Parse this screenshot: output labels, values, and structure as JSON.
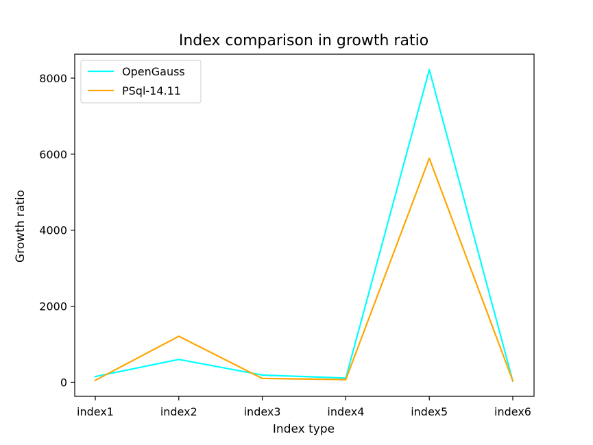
{
  "chart_data": {
    "type": "line",
    "title": "Index comparison in growth ratio",
    "xlabel": "Index type",
    "ylabel": "Growth ratio",
    "categories": [
      "index1",
      "index2",
      "index3",
      "index4",
      "index5",
      "index6"
    ],
    "series": [
      {
        "name": "OpenGauss",
        "color": "#00FFFF",
        "values": [
          150,
          600,
          190,
          110,
          8220,
          30
        ]
      },
      {
        "name": "PSql-14.11",
        "color": "#FFA500",
        "values": [
          50,
          1210,
          100,
          70,
          5890,
          40
        ]
      }
    ],
    "yticks": [
      0,
      2000,
      4000,
      6000,
      8000
    ],
    "ytick_labels": [
      "0",
      "2000",
      "4000",
      "6000",
      "8000"
    ],
    "ylim": [
      -370,
      8630
    ],
    "grid": false,
    "legend_position": "top-left"
  }
}
